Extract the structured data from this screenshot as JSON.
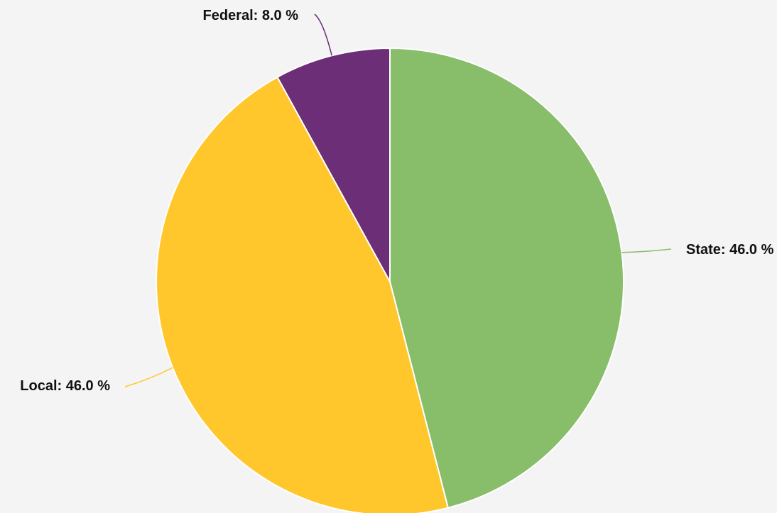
{
  "chart_data": {
    "type": "pie",
    "slices": [
      {
        "name": "State",
        "value": 46.0,
        "label": "State: 46.0 %",
        "color": "#88bd69"
      },
      {
        "name": "Local",
        "value": 46.0,
        "label": "Local: 46.0 %",
        "color": "#ffc72c"
      },
      {
        "name": "Federal",
        "value": 8.0,
        "label": "Federal: 8.0 %",
        "color": "#6b2e77"
      }
    ],
    "start_angle": "12 o'clock",
    "direction": "clockwise",
    "legend": "none",
    "background": "#f4f4f4"
  }
}
